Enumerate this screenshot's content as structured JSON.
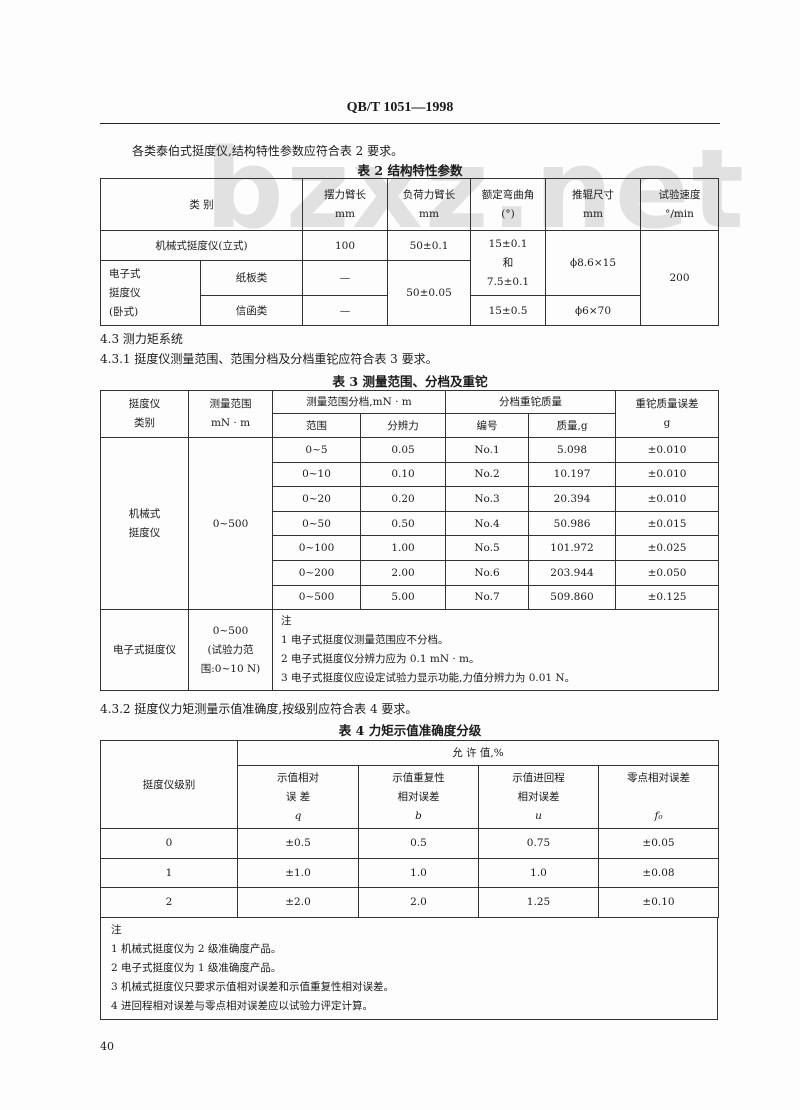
{
  "header": {
    "doc_code": "QB/T 1051—1998"
  },
  "intro": "各类泰伯式挺度仪,结构特性参数应符合表 2 要求。",
  "watermark": "bzxz.net",
  "table2": {
    "caption": "表 2   结构特性参数",
    "headers": {
      "category": "类        别",
      "swing_arm": "摆力臂长",
      "swing_unit": "mm",
      "load_arm": "负荷力臂长",
      "load_unit": "mm",
      "angle": "额定弯曲角",
      "angle_unit": "(°)",
      "roller": "推辊尺寸",
      "roller_unit": "mm",
      "speed": "试验速度",
      "speed_unit": "°/min"
    },
    "mech": {
      "label": "机械式挺度仪(立式)",
      "swing": "100",
      "load": "50±0.1"
    },
    "angle_shared": [
      "15±0.1",
      "和",
      "7.5±0.1"
    ],
    "roller_shared": "ϕ8.6×15",
    "speed_shared": "200",
    "elec": {
      "label": [
        "电子式",
        "挺度仪",
        "(卧式)"
      ],
      "load": "50±0.05",
      "rows": [
        {
          "sub": "纸板类",
          "swing": "—"
        },
        {
          "sub": "信函类",
          "swing": "—",
          "angle": "15±0.5",
          "roller": "ϕ6×70"
        }
      ]
    }
  },
  "sec43": "4.3   测力矩系统",
  "sec431": "4.3.1   挺度仪测量范围、范围分档及分档重铊应符合表 3 要求。",
  "table3": {
    "caption": "表 3   测量范围、分档及重铊",
    "headers": {
      "type": [
        "挺度仪",
        "类别"
      ],
      "range": [
        "测量范围",
        "mN · m"
      ],
      "bins": "测量范围分档,mN · m",
      "bin_range": "范围",
      "resolution": "分辨力",
      "weights": "分档重铊质量",
      "no": "编号",
      "mass": "质量,g",
      "err": [
        "重铊质量误差",
        "g"
      ]
    },
    "mech_label": [
      "机械式",
      "挺度仪"
    ],
    "mech_range": "0~500",
    "rows": [
      [
        "0~5",
        "0.05",
        "No.1",
        "5.098",
        "±0.010"
      ],
      [
        "0~10",
        "0.10",
        "No.2",
        "10.197",
        "±0.010"
      ],
      [
        "0~20",
        "0.20",
        "No.3",
        "20.394",
        "±0.010"
      ],
      [
        "0~50",
        "0.50",
        "No.4",
        "50.986",
        "±0.015"
      ],
      [
        "0~100",
        "1.00",
        "No.5",
        "101.972",
        "±0.025"
      ],
      [
        "0~200",
        "2.00",
        "No.6",
        "203.944",
        "±0.050"
      ],
      [
        "0~500",
        "5.00",
        "No.7",
        "509.860",
        "±0.125"
      ]
    ],
    "elec_label": "电子式挺度仪",
    "elec_range": [
      "0~500",
      "(试验力范",
      "围:0~10 N)"
    ],
    "notes": [
      "注",
      "1   电子式挺度仪测量范围应不分档。",
      "2   电子式挺度仪分辨力应为 0.1 mN · m。",
      "3   电子式挺度仪应设定试验力显示功能,力值分辨力为 0.01 N。"
    ]
  },
  "sec432": "4.3.2   挺度仪力矩测量示值准确度,按级别应符合表 4 要求。",
  "table4": {
    "caption": "表 4   力矩示值准确度分级",
    "headers": {
      "grade": "挺度仪级别",
      "allow": "允  许  值,%",
      "cols": [
        [
          "示值相对",
          "误    差",
          "q"
        ],
        [
          "示值重复性",
          "相对误差",
          "b"
        ],
        [
          "示值进回程",
          "相对误差",
          "u"
        ],
        [
          "零点相对误差",
          "",
          "f₀"
        ]
      ]
    },
    "rows": [
      [
        "0",
        "±0.5",
        "0.5",
        "0.75",
        "±0.05"
      ],
      [
        "1",
        "±1.0",
        "1.0",
        "1.0",
        "±0.08"
      ],
      [
        "2",
        "±2.0",
        "2.0",
        "1.25",
        "±0.10"
      ]
    ],
    "notes": [
      "注",
      "1   机械式挺度仪为 2 级准确度产品。",
      "2   电子式挺度仪为 1 级准确度产品。",
      "3   机械式挺度仪只要求示值相对误差和示值重复性相对误差。",
      "4   进回程相对误差与零点相对误差应以试验力评定计算。"
    ]
  },
  "page_number": "40"
}
